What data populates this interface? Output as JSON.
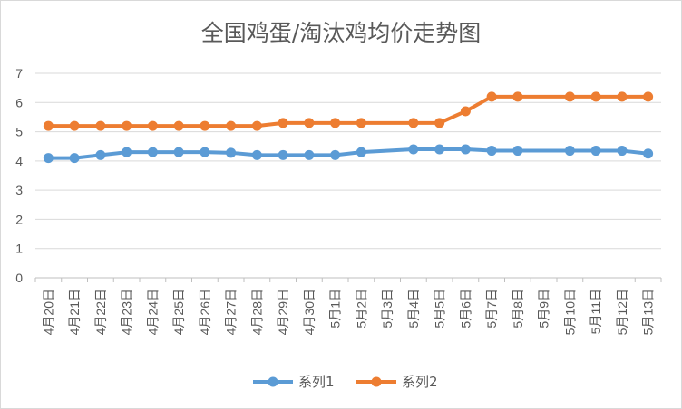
{
  "chart_data": {
    "type": "line",
    "title": "全国鸡蛋/淘汰鸡均价走势图",
    "xlabel": "",
    "ylabel": "",
    "ylim": [
      0,
      7
    ],
    "yticks": [
      "0",
      "1",
      "2",
      "3",
      "4",
      "5",
      "6",
      "7"
    ],
    "grid": "horizontal",
    "legend_position": "bottom",
    "categories": [
      "4月20日",
      "4月21日",
      "4月22日",
      "4月23日",
      "4月24日",
      "4月25日",
      "4月26日",
      "4月27日",
      "4月28日",
      "4月29日",
      "4月30日",
      "5月1日",
      "5月2日",
      "5月3日",
      "5月4日",
      "5月5日",
      "5月6日",
      "5月7日",
      "5月8日",
      "5月9日",
      "5月10日",
      "5月11日",
      "5月12日",
      "5月13日"
    ],
    "series": [
      {
        "name": "系列1",
        "color": "#5b9bd5",
        "values": [
          4.1,
          4.1,
          4.2,
          4.3,
          4.3,
          4.3,
          4.3,
          4.28,
          4.2,
          4.2,
          4.2,
          4.2,
          4.3,
          null,
          4.4,
          4.4,
          4.4,
          4.35,
          4.35,
          null,
          4.35,
          4.35,
          4.35,
          4.25
        ]
      },
      {
        "name": "系列2",
        "color": "#ed7d31",
        "values": [
          5.2,
          5.2,
          5.2,
          5.2,
          5.2,
          5.2,
          5.2,
          5.2,
          5.2,
          5.3,
          5.3,
          5.3,
          5.3,
          null,
          5.3,
          5.3,
          5.7,
          6.2,
          6.2,
          null,
          6.2,
          6.2,
          6.2,
          6.2
        ]
      }
    ]
  }
}
